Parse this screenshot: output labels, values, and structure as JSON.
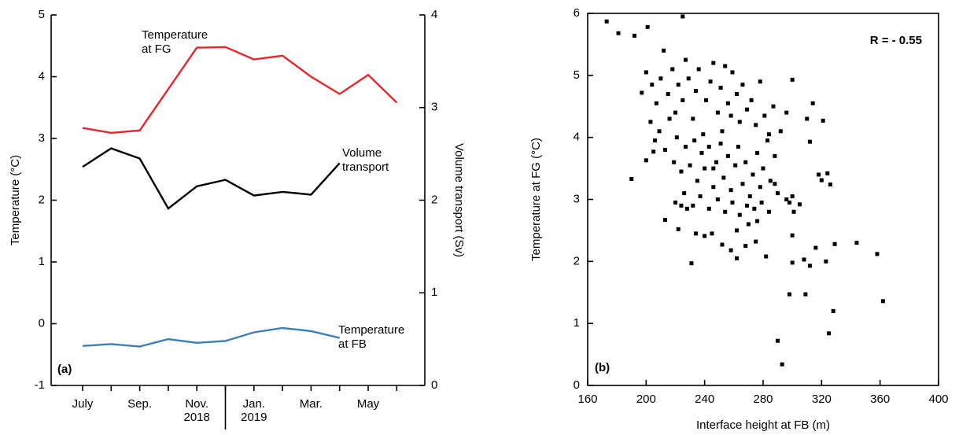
{
  "chart_data": [
    {
      "type": "line",
      "categories": [
        "July",
        null,
        "Sep.",
        null,
        "Nov. 2018",
        null,
        "Jan. 2019",
        null,
        "Mar.",
        null,
        "May",
        null
      ],
      "ylabel": "Temperature (°C)",
      "y2label": "Volume transport (Sv)",
      "ylim": [
        -1,
        5
      ],
      "yticks": [
        -1,
        0,
        1,
        2,
        3,
        4,
        5
      ],
      "y2lim": [
        0,
        4
      ],
      "y2ticks": [
        0,
        1,
        2,
        3,
        4
      ],
      "annotation": "(a)",
      "series": [
        {
          "name": "Temperature at FG",
          "color": "#e8262a",
          "values": [
            3.17,
            3.09,
            3.13,
            3.8,
            4.47,
            4.48,
            4.28,
            4.34,
            4.0,
            3.72,
            4.03,
            3.58
          ]
        },
        {
          "name": "Volume transport",
          "color": "#000000",
          "axis": "y2",
          "values": [
            2.36,
            2.56,
            2.45,
            1.91,
            2.15,
            2.22,
            2.05,
            2.09,
            2.06,
            2.4,
            null,
            null
          ]
        },
        {
          "name": "Temperature at FB",
          "color": "#3a7fb5",
          "values": [
            -0.36,
            -0.33,
            -0.37,
            -0.25,
            -0.31,
            -0.28,
            -0.14,
            -0.07,
            -0.12,
            -0.23,
            null,
            null
          ]
        }
      ]
    },
    {
      "type": "scatter",
      "xlabel": "Interface height at FB (m)",
      "ylabel": "Temperature at FG (°C)",
      "xlim": [
        160,
        400
      ],
      "xticks": [
        160,
        200,
        240,
        280,
        320,
        360,
        400
      ],
      "ylim": [
        0,
        6
      ],
      "yticks": [
        0,
        1,
        2,
        3,
        4,
        5,
        6
      ],
      "annotation": "(b)",
      "stat_label": "R = - 0.55",
      "color": "#000000",
      "x": [
        173,
        181,
        192,
        201,
        225,
        190,
        200,
        197,
        205,
        213,
        222,
        231,
        224,
        228,
        234,
        240,
        245,
        252,
        258,
        262,
        268,
        275,
        282,
        290,
        293,
        298,
        309,
        300,
        308,
        312,
        316,
        323,
        325,
        328,
        329,
        344,
        358,
        362,
        326,
        320,
        318,
        324,
        321,
        314,
        312,
        310,
        300,
        296,
        292,
        300,
        301,
        305,
        300,
        296,
        298,
        200,
        204,
        207,
        210,
        212,
        215,
        218,
        220,
        222,
        225,
        227,
        229,
        232,
        234,
        236,
        239,
        241,
        244,
        246,
        249,
        251,
        254,
        256,
        259,
        262,
        264,
        266,
        269,
        272,
        275,
        278,
        281,
        284,
        287,
        203,
        206,
        209,
        213,
        216,
        219,
        221,
        224,
        227,
        230,
        233,
        235,
        238,
        240,
        243,
        246,
        248,
        251,
        253,
        256,
        258,
        261,
        263,
        266,
        268,
        271,
        273,
        276,
        278,
        280,
        283,
        285,
        288,
        290,
        220,
        226,
        232,
        237,
        243,
        249,
        254,
        259,
        264,
        269,
        274,
        279,
        284,
        262,
        270,
        276,
        288,
        246,
        252,
        258
      ],
      "values": [
        5.87,
        5.68,
        5.64,
        5.78,
        5.95,
        3.33,
        3.63,
        4.72,
        3.77,
        2.67,
        2.52,
        1.97,
        2.9,
        2.85,
        2.45,
        2.41,
        2.45,
        2.27,
        2.18,
        2.05,
        2.25,
        2.32,
        2.08,
        0.72,
        0.34,
        1.47,
        1.47,
        1.98,
        2.03,
        1.93,
        2.22,
        2.0,
        0.84,
        1.2,
        2.28,
        2.3,
        2.12,
        1.36,
        3.24,
        3.31,
        3.4,
        3.42,
        4.27,
        4.55,
        3.93,
        4.3,
        4.93,
        4.4,
        4.1,
        3.05,
        2.8,
        2.92,
        2.42,
        3.0,
        2.95,
        5.05,
        4.85,
        4.55,
        4.95,
        5.4,
        4.7,
        5.1,
        4.4,
        4.85,
        4.6,
        5.25,
        4.95,
        4.3,
        4.75,
        5.1,
        4.05,
        4.6,
        4.9,
        5.2,
        4.4,
        4.8,
        5.15,
        4.55,
        5.05,
        4.7,
        4.25,
        4.85,
        4.45,
        4.6,
        4.2,
        4.9,
        4.35,
        4.05,
        4.5,
        4.25,
        3.95,
        4.1,
        3.8,
        4.3,
        3.6,
        4.0,
        3.45,
        3.85,
        3.55,
        3.95,
        3.3,
        3.75,
        3.5,
        3.85,
        3.2,
        3.6,
        3.9,
        3.35,
        3.7,
        3.15,
        3.55,
        3.85,
        3.25,
        3.6,
        3.05,
        3.4,
        3.75,
        3.2,
        3.5,
        3.95,
        3.3,
        3.7,
        3.1,
        2.95,
        3.1,
        2.9,
        3.05,
        2.85,
        3.0,
        2.8,
        2.95,
        2.75,
        2.9,
        2.85,
        2.95,
        2.8,
        2.5,
        2.6,
        2.65,
        3.25,
        3.5,
        4.1,
        4.35
      ]
    }
  ]
}
